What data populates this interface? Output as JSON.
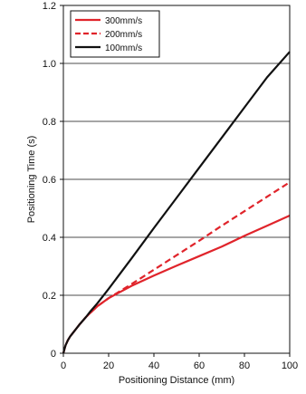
{
  "chart_data": {
    "type": "line",
    "xlabel": "Positioning Distance (mm)",
    "ylabel": "Positioning Time (s)",
    "xlim": [
      0,
      100
    ],
    "ylim": [
      0,
      1.2
    ],
    "xticks": [
      0,
      20,
      40,
      60,
      80,
      100
    ],
    "yticks": [
      0,
      0.2,
      0.4,
      0.6,
      0.8,
      1.0,
      1.2
    ],
    "xtick_labels": [
      "0",
      "20",
      "40",
      "60",
      "80",
      "100"
    ],
    "ytick_labels": [
      "0",
      "0.2",
      "0.4",
      "0.6",
      "0.8",
      "1.0",
      "1.2"
    ],
    "grid": "horizontal",
    "legend_position": "top-left",
    "series": [
      {
        "name": "300mm/s",
        "color": "#e0242b",
        "line_style": "solid",
        "x": [
          0,
          0.5,
          1,
          2,
          3,
          5,
          7,
          10,
          12,
          15,
          20,
          30,
          40,
          50,
          60,
          70,
          80,
          90,
          100
        ],
        "y": [
          0,
          0.015,
          0.028,
          0.045,
          0.058,
          0.078,
          0.098,
          0.125,
          0.14,
          0.162,
          0.19,
          0.232,
          0.268,
          0.302,
          0.335,
          0.368,
          0.405,
          0.44,
          0.475
        ]
      },
      {
        "name": "200mm/s",
        "color": "#e0242b",
        "line_style": "dashed",
        "x": [
          0,
          0.5,
          1,
          2,
          3,
          5,
          7,
          10,
          12,
          15,
          20,
          30,
          40,
          50,
          60,
          70,
          80,
          90,
          100
        ],
        "y": [
          0,
          0.015,
          0.028,
          0.045,
          0.058,
          0.078,
          0.098,
          0.125,
          0.14,
          0.162,
          0.19,
          0.238,
          0.288,
          0.338,
          0.388,
          0.44,
          0.49,
          0.54,
          0.59
        ]
      },
      {
        "name": "100mm/s",
        "color": "#111111",
        "line_style": "solid",
        "x": [
          0,
          0.5,
          1,
          2,
          3,
          5,
          7,
          10,
          12,
          15,
          20,
          30,
          40,
          50,
          60,
          70,
          80,
          90,
          100
        ],
        "y": [
          0,
          0.015,
          0.028,
          0.045,
          0.058,
          0.078,
          0.098,
          0.125,
          0.145,
          0.172,
          0.222,
          0.326,
          0.432,
          0.536,
          0.64,
          0.744,
          0.848,
          0.952,
          1.04
        ]
      }
    ]
  }
}
